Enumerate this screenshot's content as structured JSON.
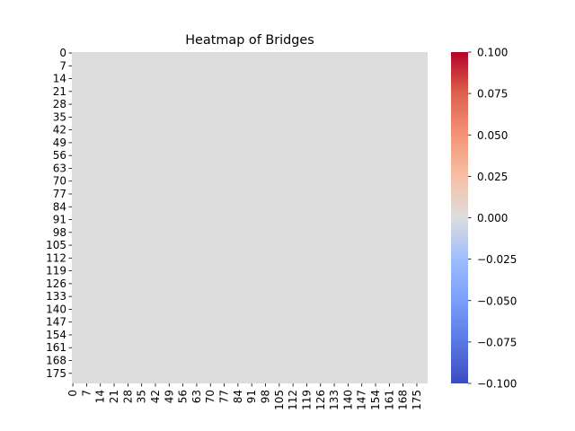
{
  "chart_data": {
    "type": "heatmap",
    "title": "Heatmap of Bridges",
    "rows": 181,
    "cols": 181,
    "fill_value": 0.0,
    "row_tick_labels": [
      "0",
      "7",
      "14",
      "21",
      "28",
      "35",
      "42",
      "49",
      "56",
      "63",
      "70",
      "77",
      "84",
      "91",
      "98",
      "105",
      "112",
      "119",
      "126",
      "133",
      "140",
      "147",
      "154",
      "161",
      "168",
      "175"
    ],
    "col_tick_labels": [
      "0",
      "7",
      "14",
      "21",
      "28",
      "35",
      "42",
      "49",
      "56",
      "63",
      "70",
      "77",
      "84",
      "91",
      "98",
      "105",
      "112",
      "119",
      "126",
      "133",
      "140",
      "147",
      "154",
      "161",
      "168",
      "175"
    ],
    "colorbar": {
      "colormap": "coolwarm",
      "vmin": -0.1,
      "vmax": 0.1,
      "tick_labels": [
        "0.100",
        "0.075",
        "0.050",
        "0.025",
        "0.000",
        "−0.025",
        "−0.050",
        "−0.075",
        "−0.100"
      ]
    },
    "cell_color": "#dddddd"
  }
}
